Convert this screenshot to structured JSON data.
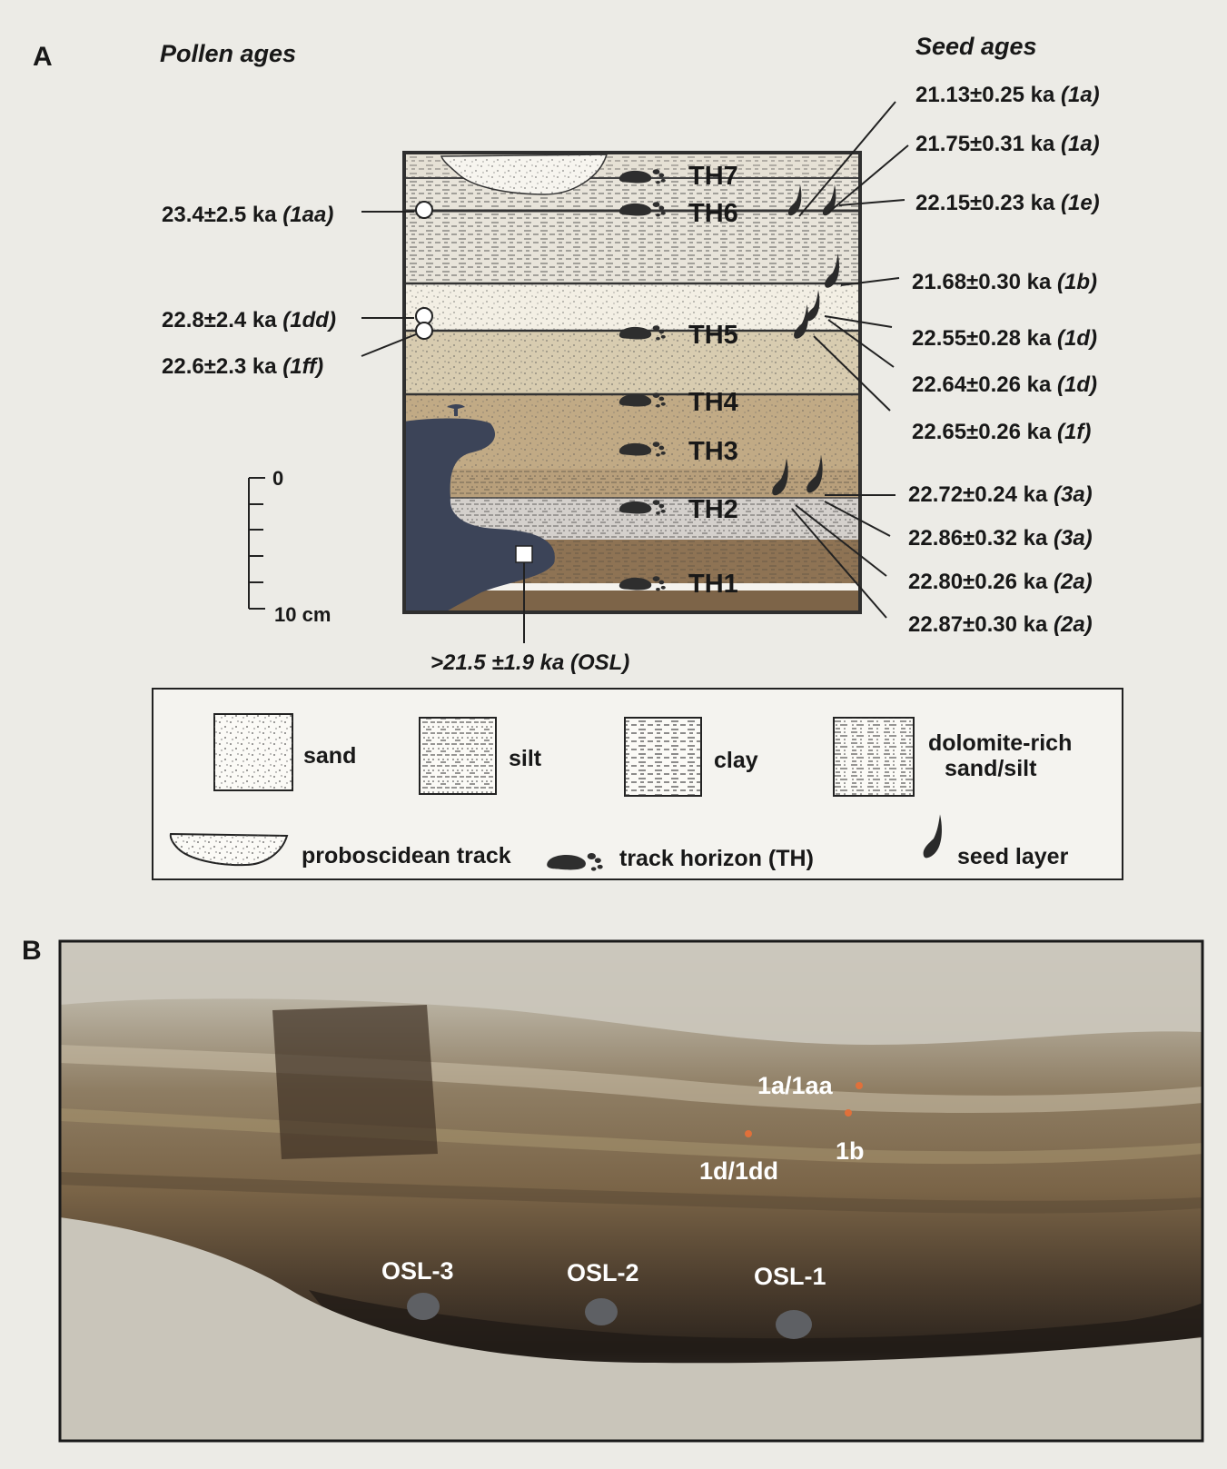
{
  "panel_a": {
    "letter": "A",
    "pollen_title": "Pollen ages",
    "seed_title": "Seed ages",
    "pollen_ages": [
      {
        "age": "23.4±2.5 ka",
        "sample": "(1aa)"
      },
      {
        "age": "22.8±2.4 ka",
        "sample": "(1dd)"
      },
      {
        "age": "22.6±2.3 ka",
        "sample": "(1ff)"
      }
    ],
    "seed_ages": [
      {
        "age": "21.13±0.25 ka",
        "sample": "(1a)"
      },
      {
        "age": "21.75±0.31 ka",
        "sample": "(1a)"
      },
      {
        "age": "22.15±0.23 ka",
        "sample": "(1e)"
      },
      {
        "age": "21.68±0.30 ka",
        "sample": "(1b)"
      },
      {
        "age": "22.55±0.28 ka",
        "sample": "(1d)"
      },
      {
        "age": "22.64±0.26 ka",
        "sample": "(1d)"
      },
      {
        "age": "22.65±0.26 ka",
        "sample": "(1f)"
      },
      {
        "age": "22.72±0.24 ka",
        "sample": "(3a)"
      },
      {
        "age": "22.86±0.32 ka",
        "sample": "(3a)"
      },
      {
        "age": "22.80±0.26 ka",
        "sample": "(2a)"
      },
      {
        "age": "22.87±0.30 ka",
        "sample": "(2a)"
      }
    ],
    "track_horizons": [
      "TH7",
      "TH6",
      "TH5",
      "TH4",
      "TH3",
      "TH2",
      "TH1"
    ],
    "scale": {
      "top": "0",
      "bottom": "10 cm"
    },
    "osl_label": ">21.5 ±1.9 ka (OSL)",
    "colors": {
      "sand_light": "#f1ede0",
      "sand_tan": "#d8ccb0",
      "brown": "#b9a07c",
      "dark_brown": "#8e7354",
      "silt_gray": "#cfcbc6",
      "dark_blue": "#3c4458",
      "frame": "#2f2f2f"
    }
  },
  "legend": {
    "sand": "sand",
    "silt": "silt",
    "clay": "clay",
    "dolomite_line1": "dolomite-rich",
    "dolomite_line2": "sand/silt",
    "proboscidean": "proboscidean track",
    "track_horizon": "track horizon (TH)",
    "seed_layer": "seed layer"
  },
  "panel_b": {
    "letter": "B",
    "labels": [
      "1a/1aa",
      "1b",
      "1d/1dd",
      "OSL-3",
      "OSL-2",
      "OSL-1"
    ]
  }
}
